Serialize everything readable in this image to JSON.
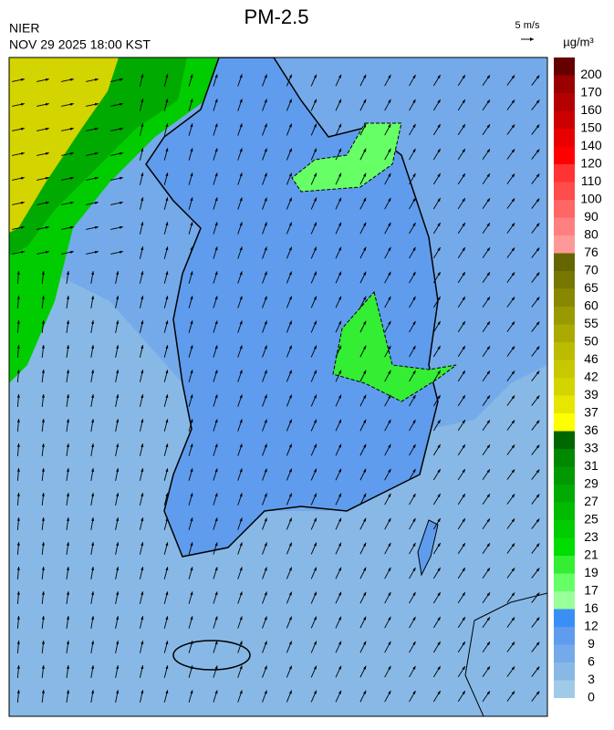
{
  "header": {
    "title": "PM-2.5",
    "source": "NIER",
    "datetime": "NOV 29 2025 18:00 KST",
    "wind_scale": "5 m/s"
  },
  "colorbar": {
    "unit": "µg/m³",
    "labels": [
      0,
      3,
      6,
      9,
      12,
      16,
      17,
      19,
      21,
      23,
      25,
      27,
      29,
      31,
      33,
      36,
      37,
      39,
      42,
      46,
      50,
      55,
      60,
      65,
      70,
      76,
      80,
      90,
      100,
      110,
      120,
      140,
      150,
      160,
      170,
      200
    ],
    "colors": [
      "#9fcbe6",
      "#88b9e6",
      "#74aaea",
      "#5f9ced",
      "#3a8ff5",
      "#99ff99",
      "#66ff66",
      "#33ee33",
      "#00dd00",
      "#00cc00",
      "#00bb00",
      "#00aa00",
      "#009900",
      "#008800",
      "#006600",
      "#ffff00",
      "#e6e600",
      "#d4d400",
      "#c8c800",
      "#bbbb00",
      "#aaaa00",
      "#999900",
      "#888800",
      "#777700",
      "#666600",
      "#ff9999",
      "#ff8080",
      "#ff6666",
      "#ff4d4d",
      "#ff3333",
      "#ff0000",
      "#e60000",
      "#cc0000",
      "#b30000",
      "#990000",
      "#660000"
    ]
  }
}
